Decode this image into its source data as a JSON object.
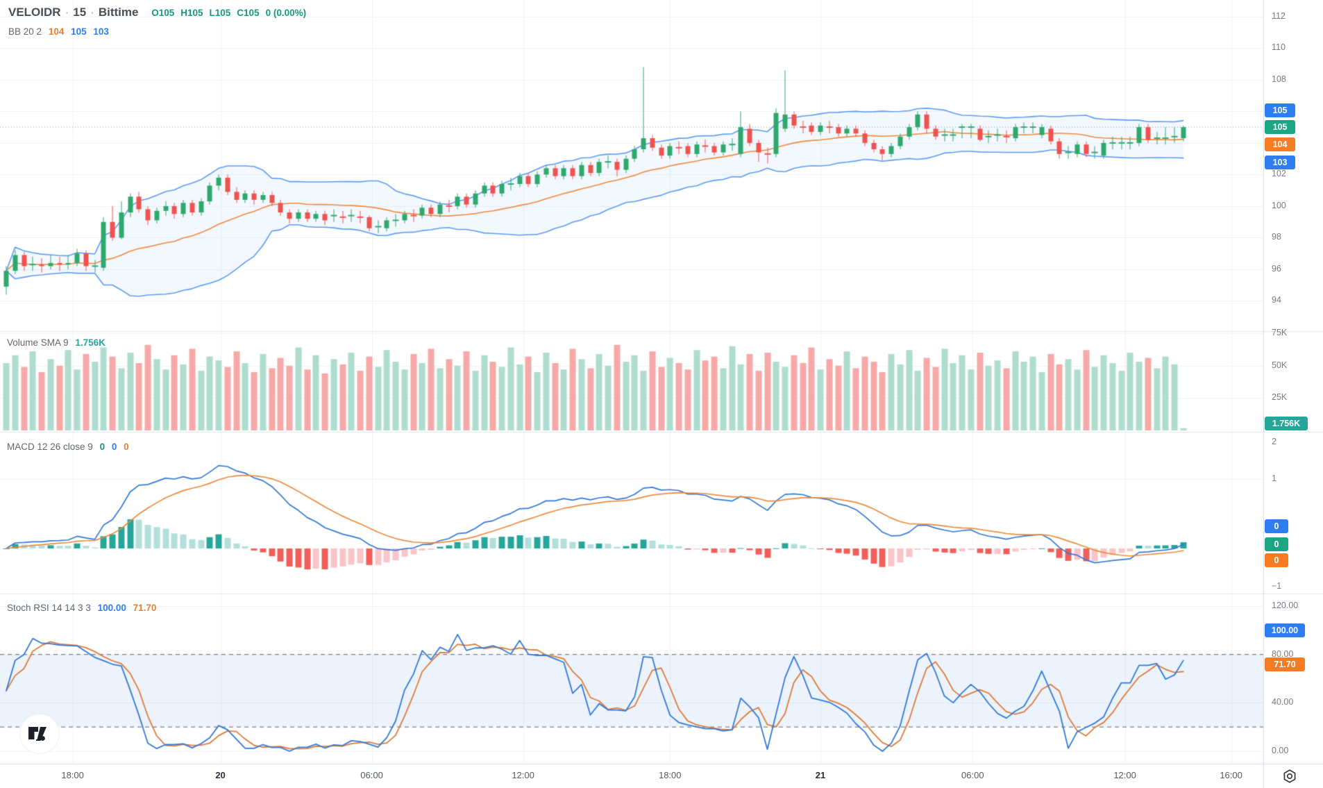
{
  "header": {
    "symbol": "VELOIDR",
    "separator": "·",
    "interval": "15",
    "exchange": "Bittime",
    "ohlc": {
      "open": "O105",
      "high": "H105",
      "low": "L105",
      "close": "C105",
      "change": "0 (0.00%)"
    },
    "bb_label": "BB 20 2",
    "bb_basis": "104",
    "bb_upper": "105",
    "bb_lower": "103"
  },
  "panel_headers": {
    "volume_label": "Volume SMA 9",
    "volume_value": "1.756K",
    "macd_label": "MACD 12 26 close 9",
    "macd_v1": "0",
    "macd_v2": "0",
    "macd_v3": "0",
    "stoch_label": "Stoch RSI 14 14 3 3",
    "stoch_k": "100.00",
    "stoch_d": "71.70"
  },
  "price_axis": {
    "ticks": [
      {
        "label": "112",
        "value": 112
      },
      {
        "label": "110",
        "value": 110
      },
      {
        "label": "108",
        "value": 108
      },
      {
        "label": "106",
        "value": 106,
        "hidden": true
      },
      {
        "label": "104",
        "value": 104,
        "hidden": true
      },
      {
        "label": "102",
        "value": 102
      },
      {
        "label": "100",
        "value": 100
      },
      {
        "label": "98",
        "value": 98
      },
      {
        "label": "96",
        "value": 96
      },
      {
        "label": "94",
        "value": 94
      }
    ],
    "badges": [
      {
        "label": "105",
        "value": 106.05,
        "color": "#2e7ef2"
      },
      {
        "label": "105",
        "value": 105.0,
        "color": "#1ca583"
      },
      {
        "label": "104",
        "value": 103.92,
        "color": "#f57c22"
      },
      {
        "label": "103",
        "value": 102.75,
        "color": "#2e7ef2"
      }
    ]
  },
  "volume_axis": {
    "ticks": [
      {
        "label": "75K",
        "value": 75000
      },
      {
        "label": "50K",
        "value": 50000
      },
      {
        "label": "25K",
        "value": 25000
      }
    ],
    "badge": {
      "label": "1.756K",
      "value": 1756,
      "color": "#26a69a"
    }
  },
  "macd_axis": {
    "ticks": [
      {
        "label": "2",
        "value": 2
      },
      {
        "label": "1",
        "value": 1
      },
      {
        "label": "−1",
        "value": -1
      }
    ],
    "badges": [
      {
        "label": "0",
        "color": "#2e7ef2"
      },
      {
        "label": "0",
        "color": "#1ca583"
      },
      {
        "label": "0",
        "color": "#f57c22"
      }
    ]
  },
  "stoch_axis": {
    "ticks": [
      {
        "label": "120.00",
        "value": 120
      },
      {
        "label": "80.00",
        "value": 80
      },
      {
        "label": "40.00",
        "value": 40
      },
      {
        "label": "0.00",
        "value": 0
      }
    ],
    "badges": [
      {
        "label": "100.00",
        "value": 100,
        "color": "#2e7ef2"
      },
      {
        "label": "71.70",
        "value": 71.7,
        "color": "#f57c22"
      }
    ],
    "band_upper": 80,
    "band_lower": 20
  },
  "time_axis": {
    "ticks": [
      {
        "label": "18:00",
        "bar": 7.5
      },
      {
        "label": "20",
        "bar": 24.2,
        "major": true
      },
      {
        "label": "06:00",
        "bar": 41.3
      },
      {
        "label": "12:00",
        "bar": 58.4
      },
      {
        "label": "18:00",
        "bar": 75.0
      },
      {
        "label": "21",
        "bar": 92.0,
        "major": true
      },
      {
        "label": "06:00",
        "bar": 109.2
      },
      {
        "label": "12:00",
        "bar": 126.4
      },
      {
        "label": "16:00",
        "bar": 138.4
      }
    ]
  },
  "colors": {
    "up": "#2fa86e",
    "down": "#ef5350",
    "vol_up": "#aedcce",
    "vol_down": "#f6a9a8",
    "bb_line": "#5b9cf6",
    "bb_basis": "#ef8a3c",
    "bb_fill": "rgba(91,156,246,0.07)",
    "macd_line": "#3179d9",
    "macd_signal": "#ef8a3c",
    "hist_grow_above": "#26a69a",
    "hist_fall_above": "#b2dfdb",
    "hist_grow_below": "#fbc4c9",
    "hist_fall_below": "#f25f5b",
    "stoch_k": "#3179d9",
    "stoch_d": "#e07b39",
    "stoch_fill": "rgba(49,121,217,0.09)",
    "grid": "#f0f3f8",
    "divider": "#e0e3eb",
    "axis_text": "#787b86",
    "dashed_level": "#5f6470",
    "price_line": "#8a8e99"
  },
  "chart_data": {
    "type": "candlestick",
    "symbol": "VELOIDR",
    "interval": "15",
    "exchange": "Bittime",
    "last_close": 105,
    "change": 0,
    "change_pct": "0.00%",
    "indicators": {
      "bollinger": {
        "length": 20,
        "mult": 2,
        "basis": 104,
        "upper": 105,
        "lower": 103
      },
      "volume_sma": {
        "length": 9,
        "last_volume": "1.756K"
      },
      "macd": {
        "fast": 12,
        "slow": 26,
        "source": "close",
        "signal": 9,
        "values": [
          0,
          0,
          0
        ]
      },
      "stoch_rsi": {
        "rsi_len": 14,
        "stoch_len": 14,
        "k": 3,
        "d": 3,
        "k_value": 100.0,
        "d_value": 71.7
      }
    },
    "price_axis_range_visible": [
      94,
      112
    ],
    "macd_axis_range": [
      -1,
      2
    ],
    "stoch_axis_range": [
      0,
      120
    ],
    "volume_axis_range": [
      0,
      75000
    ],
    "candles": [
      [
        94.9,
        96.2,
        94.4,
        95.9
      ],
      [
        95.9,
        97.2,
        95.7,
        96.9
      ],
      [
        96.9,
        97.1,
        95.9,
        96.2
      ],
      [
        96.3,
        96.8,
        95.9,
        96.3
      ],
      [
        96.3,
        96.7,
        95.8,
        96.2
      ],
      [
        96.2,
        96.9,
        96.0,
        96.4
      ],
      [
        96.4,
        96.8,
        95.9,
        96.3
      ],
      [
        96.3,
        96.9,
        96.0,
        96.4
      ],
      [
        96.4,
        97.3,
        96.2,
        97.0
      ],
      [
        97.0,
        97.2,
        95.9,
        96.2
      ],
      [
        96.2,
        96.6,
        95.8,
        96.2
      ],
      [
        96.1,
        99.3,
        95.9,
        99.0
      ],
      [
        99.0,
        100.0,
        97.8,
        98.0
      ],
      [
        98.0,
        100.3,
        97.9,
        99.6
      ],
      [
        99.6,
        100.8,
        99.3,
        100.6
      ],
      [
        100.6,
        100.9,
        99.6,
        99.8
      ],
      [
        99.8,
        100.0,
        98.8,
        99.1
      ],
      [
        99.1,
        99.9,
        98.9,
        99.7
      ],
      [
        99.7,
        100.3,
        99.4,
        100.0
      ],
      [
        100.0,
        100.2,
        99.2,
        99.5
      ],
      [
        99.5,
        100.4,
        99.3,
        100.2
      ],
      [
        100.2,
        100.4,
        99.4,
        99.6
      ],
      [
        99.6,
        100.5,
        99.4,
        100.3
      ],
      [
        100.3,
        101.5,
        100.1,
        101.3
      ],
      [
        101.3,
        102.0,
        101.0,
        101.8
      ],
      [
        101.8,
        102.0,
        100.7,
        100.9
      ],
      [
        100.9,
        101.2,
        100.2,
        100.4
      ],
      [
        100.4,
        101.0,
        100.2,
        100.8
      ],
      [
        100.8,
        101.0,
        100.1,
        100.4
      ],
      [
        100.4,
        100.9,
        100.2,
        100.7
      ],
      [
        100.7,
        100.9,
        100.0,
        100.2
      ],
      [
        100.2,
        100.4,
        99.4,
        99.6
      ],
      [
        99.6,
        99.8,
        98.9,
        99.2
      ],
      [
        99.2,
        99.8,
        99.0,
        99.6
      ],
      [
        99.6,
        99.8,
        99.0,
        99.2
      ],
      [
        99.2,
        99.7,
        99.0,
        99.5
      ],
      [
        99.5,
        99.7,
        98.8,
        99.1
      ],
      [
        99.4,
        99.8,
        99.0,
        99.4
      ],
      [
        99.3,
        99.7,
        98.9,
        99.3
      ],
      [
        99.4,
        99.8,
        99.0,
        99.4
      ],
      [
        99.3,
        99.7,
        98.9,
        99.3
      ],
      [
        99.3,
        99.4,
        98.4,
        98.6
      ],
      [
        98.7,
        99.1,
        98.3,
        98.7
      ],
      [
        98.6,
        99.3,
        98.4,
        99.1
      ],
      [
        99.1,
        99.5,
        98.7,
        99.1
      ],
      [
        99.1,
        99.7,
        98.9,
        99.5
      ],
      [
        99.4,
        99.8,
        99.0,
        99.4
      ],
      [
        99.4,
        100.1,
        99.2,
        99.9
      ],
      [
        99.9,
        100.1,
        99.3,
        99.5
      ],
      [
        99.5,
        100.3,
        99.3,
        100.1
      ],
      [
        100.0,
        100.4,
        99.6,
        100.0
      ],
      [
        100.0,
        100.8,
        99.8,
        100.6
      ],
      [
        100.6,
        100.8,
        99.9,
        100.1
      ],
      [
        100.1,
        101.0,
        99.9,
        100.8
      ],
      [
        100.8,
        101.5,
        100.6,
        101.3
      ],
      [
        101.3,
        101.5,
        100.6,
        100.8
      ],
      [
        100.8,
        101.6,
        100.6,
        101.4
      ],
      [
        101.4,
        101.8,
        101.0,
        101.4
      ],
      [
        101.4,
        102.1,
        101.2,
        101.9
      ],
      [
        101.9,
        102.1,
        101.2,
        101.4
      ],
      [
        101.4,
        102.2,
        101.2,
        102.0
      ],
      [
        102.0,
        102.6,
        101.8,
        102.4
      ],
      [
        102.4,
        102.6,
        101.7,
        101.9
      ],
      [
        101.9,
        102.6,
        101.7,
        102.4
      ],
      [
        102.4,
        102.6,
        101.7,
        101.9
      ],
      [
        101.9,
        102.8,
        101.7,
        102.6
      ],
      [
        102.6,
        102.8,
        101.9,
        102.1
      ],
      [
        102.1,
        103.0,
        101.9,
        102.8
      ],
      [
        102.8,
        103.2,
        102.4,
        102.8
      ],
      [
        102.8,
        103.0,
        101.9,
        102.3
      ],
      [
        102.3,
        103.2,
        102.1,
        103.0
      ],
      [
        103.0,
        103.8,
        102.8,
        103.6
      ],
      [
        103.6,
        108.8,
        103.4,
        104.3
      ],
      [
        104.3,
        104.5,
        103.5,
        103.7
      ],
      [
        103.7,
        103.9,
        103.0,
        103.2
      ],
      [
        103.2,
        104.0,
        103.0,
        103.8
      ],
      [
        103.7,
        104.1,
        103.3,
        103.7
      ],
      [
        103.8,
        104.0,
        103.1,
        103.3
      ],
      [
        103.3,
        104.1,
        103.1,
        103.9
      ],
      [
        103.8,
        104.2,
        103.4,
        103.8
      ],
      [
        103.8,
        104.0,
        103.2,
        103.4
      ],
      [
        103.4,
        104.1,
        103.2,
        103.9
      ],
      [
        103.9,
        104.3,
        103.5,
        103.9
      ],
      [
        103.3,
        106.0,
        103.1,
        105.0
      ],
      [
        104.9,
        105.2,
        103.8,
        104.0
      ],
      [
        104.0,
        104.2,
        102.8,
        103.4
      ],
      [
        103.3,
        103.7,
        102.7,
        103.3
      ],
      [
        103.3,
        106.2,
        103.1,
        105.9
      ],
      [
        104.9,
        108.6,
        104.7,
        105.8
      ],
      [
        105.8,
        106.0,
        104.9,
        105.1
      ],
      [
        105.0,
        105.4,
        104.6,
        105.0
      ],
      [
        105.1,
        105.3,
        104.5,
        104.7
      ],
      [
        104.7,
        105.3,
        104.5,
        105.1
      ],
      [
        105.0,
        105.4,
        104.6,
        105.0
      ],
      [
        105.0,
        105.2,
        104.4,
        104.6
      ],
      [
        104.6,
        105.1,
        104.4,
        104.9
      ],
      [
        104.9,
        105.1,
        104.4,
        104.6
      ],
      [
        104.6,
        104.8,
        103.8,
        104.0
      ],
      [
        104.0,
        104.2,
        103.4,
        103.6
      ],
      [
        103.6,
        103.8,
        102.9,
        103.3
      ],
      [
        103.3,
        104.0,
        103.1,
        103.8
      ],
      [
        103.8,
        104.6,
        103.6,
        104.4
      ],
      [
        104.4,
        105.2,
        104.2,
        105.0
      ],
      [
        105.0,
        106.0,
        104.8,
        105.8
      ],
      [
        105.8,
        106.0,
        104.6,
        104.9
      ],
      [
        104.9,
        105.1,
        104.2,
        104.4
      ],
      [
        104.5,
        104.9,
        104.1,
        104.5
      ],
      [
        104.5,
        104.9,
        104.1,
        104.5
      ],
      [
        105.0,
        105.2,
        104.3,
        105.0
      ],
      [
        105.0,
        105.2,
        104.3,
        105.0
      ],
      [
        104.9,
        105.1,
        104.1,
        104.2
      ],
      [
        104.4,
        104.8,
        104.0,
        104.4
      ],
      [
        104.5,
        104.9,
        104.1,
        104.5
      ],
      [
        104.4,
        104.8,
        104.0,
        104.4
      ],
      [
        104.3,
        105.2,
        104.1,
        105.0
      ],
      [
        105.0,
        105.3,
        104.6,
        105.0
      ],
      [
        105.0,
        105.3,
        104.6,
        105.0
      ],
      [
        104.5,
        105.2,
        104.3,
        105.0
      ],
      [
        104.9,
        105.1,
        103.9,
        104.1
      ],
      [
        104.1,
        104.3,
        103.0,
        103.3
      ],
      [
        103.4,
        103.8,
        103.0,
        103.4
      ],
      [
        103.3,
        104.1,
        103.1,
        103.9
      ],
      [
        103.9,
        104.1,
        103.1,
        103.3
      ],
      [
        103.4,
        103.8,
        103.0,
        103.4
      ],
      [
        103.2,
        104.2,
        103.0,
        104.0
      ],
      [
        104.0,
        104.4,
        103.6,
        104.0
      ],
      [
        104.0,
        104.4,
        103.6,
        104.0
      ],
      [
        104.0,
        104.4,
        103.6,
        104.0
      ],
      [
        104.0,
        105.2,
        103.8,
        105.0
      ],
      [
        105.0,
        105.2,
        104.0,
        104.2
      ],
      [
        104.3,
        104.7,
        103.9,
        104.3
      ],
      [
        104.3,
        105.0,
        103.9,
        104.3
      ],
      [
        104.4,
        105.0,
        104.0,
        104.4
      ],
      [
        104.3,
        105.1,
        104.1,
        105.0
      ]
    ],
    "volumes": [
      52000,
      58000,
      49000,
      61000,
      45000,
      55000,
      50000,
      62000,
      47000,
      59000,
      53000,
      64000,
      57000,
      48000,
      60000,
      52000,
      66000,
      55000,
      47000,
      58000,
      51000,
      63000,
      46000,
      57000,
      54000,
      49000,
      61000,
      52000,
      45000,
      59000,
      48000,
      56000,
      50000,
      64000,
      47000,
      58000,
      44000,
      55000,
      51000,
      60000,
      46000,
      57000,
      49000,
      62000,
      53000,
      47000,
      59000,
      52000,
      63000,
      48000,
      55000,
      50000,
      61000,
      46000,
      58000,
      53000,
      49000,
      64000,
      51000,
      57000,
      45000,
      60000,
      52000,
      47000,
      63000,
      55000,
      48000,
      59000,
      50000,
      66000,
      53000,
      58000,
      46000,
      61000,
      49000,
      56000,
      52000,
      47000,
      62000,
      54000,
      57000,
      48000,
      65000,
      51000,
      59000,
      46000,
      60000,
      53000,
      49000,
      58000,
      52000,
      64000,
      47000,
      55000,
      50000,
      61000,
      48000,
      57000,
      53000,
      45000,
      59000,
      51000,
      62000,
      46000,
      56000,
      49000,
      63000,
      52000,
      58000,
      47000,
      60000,
      50000,
      54000,
      48000,
      61000,
      53000,
      57000,
      45000,
      59000,
      51000,
      55000,
      47000,
      62000,
      49000,
      58000,
      52000,
      46000,
      60000,
      53000,
      56000,
      48000,
      57000,
      51000,
      1756
    ]
  }
}
